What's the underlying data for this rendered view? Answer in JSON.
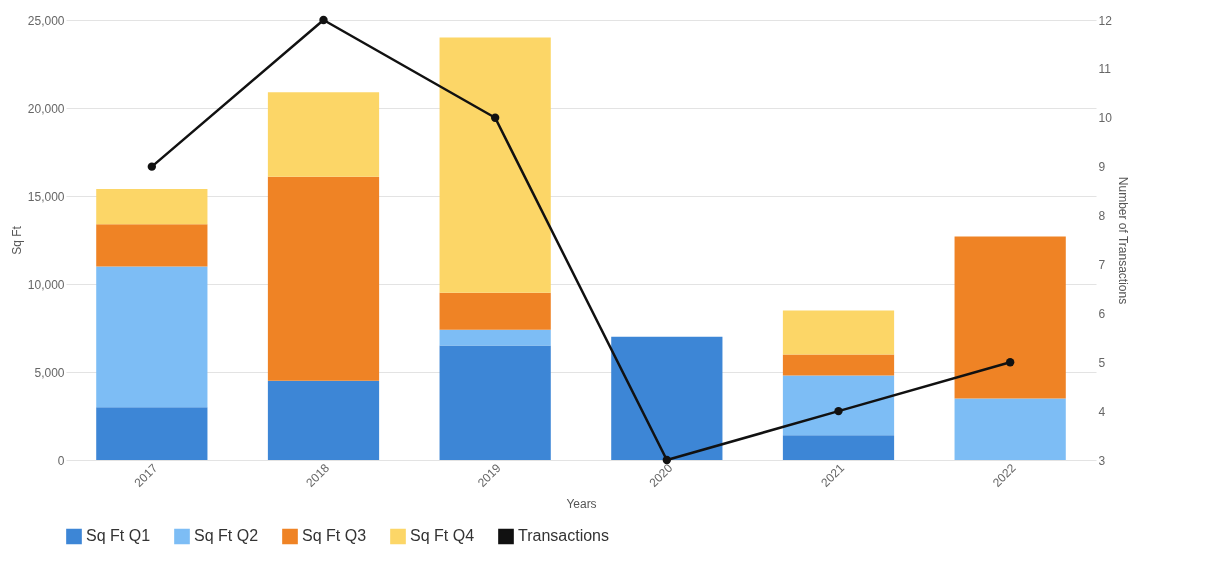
{
  "chart_data": {
    "type": "bar",
    "stacked": true,
    "xlabel": "Years",
    "ylabel": "Sq Ft",
    "y2label": "Number of Transactions",
    "categories": [
      "2017",
      "2018",
      "2019",
      "2020",
      "2021",
      "2022"
    ],
    "series": [
      {
        "name": "Sq Ft Q1",
        "color": "#3d86d6",
        "values": [
          3000,
          4500,
          6500,
          7000,
          1400,
          0
        ]
      },
      {
        "name": "Sq Ft Q2",
        "color": "#7dbdf5",
        "values": [
          8000,
          0,
          900,
          0,
          3400,
          3500
        ]
      },
      {
        "name": "Sq Ft Q3",
        "color": "#ef8325",
        "values": [
          2400,
          11600,
          2100,
          0,
          1200,
          9200
        ]
      },
      {
        "name": "Sq Ft Q4",
        "color": "#fcd667",
        "values": [
          2000,
          4800,
          14500,
          0,
          2500,
          0
        ]
      },
      {
        "name": "Transactions",
        "color": "#111111",
        "type": "line",
        "axis": "y2",
        "values": [
          9,
          12,
          10,
          3,
          4,
          5
        ]
      }
    ],
    "ylim": [
      0,
      25000
    ],
    "yticks": [
      0,
      {
        "value": 5000,
        "label": "5,000"
      },
      {
        "value": 10000,
        "label": "10,000"
      },
      {
        "value": 15000,
        "label": "15,000"
      },
      {
        "value": 20000,
        "label": "20,000"
      },
      {
        "value": 25000,
        "label": "25,000"
      }
    ],
    "y2lim": [
      3,
      12
    ],
    "y2ticks": [
      3,
      4,
      5,
      6,
      7,
      8,
      9,
      10,
      11,
      12
    ],
    "grid": "y",
    "legend": "bottom",
    "marker": "circle"
  }
}
